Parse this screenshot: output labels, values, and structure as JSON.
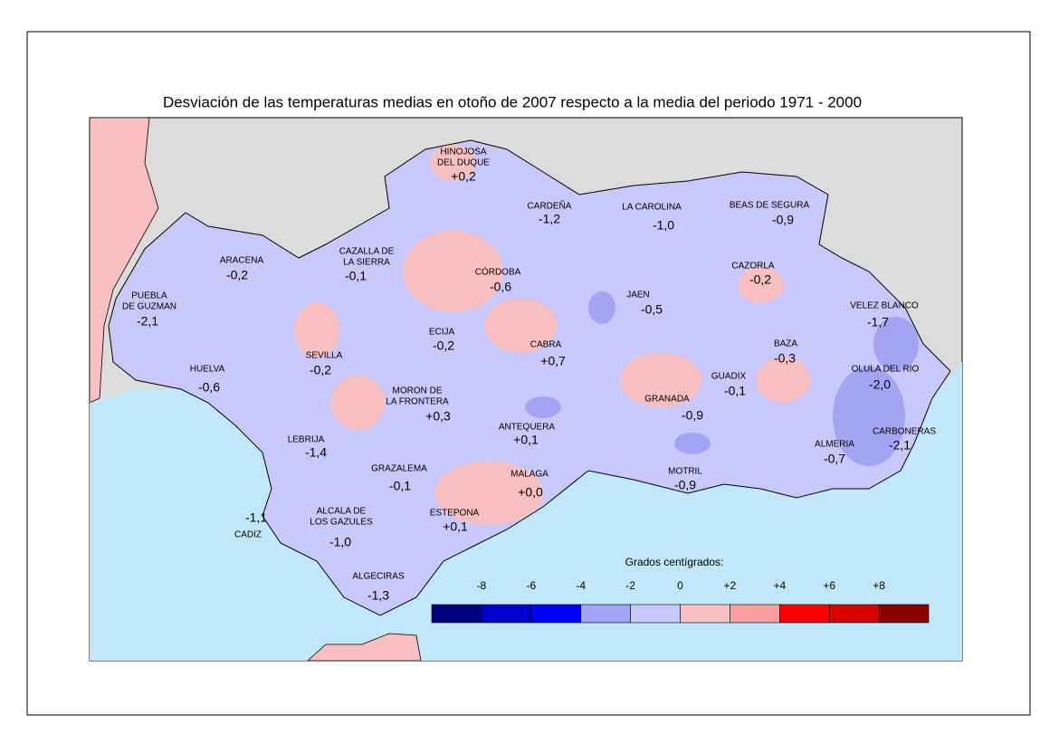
{
  "title": "Desviación de las temperaturas medias en otoño de 2007 respecto a la media del periodo 1971 - 2000",
  "stations": [
    {
      "name": [
        "HINOJOSA",
        "DEL DUQUE"
      ],
      "value": "+0,2"
    },
    {
      "name": [
        "CARDEÑA"
      ],
      "value": "-1,2"
    },
    {
      "name": [
        "LA CAROLINA"
      ],
      "value": "-1,0"
    },
    {
      "name": [
        "BEAS DE SEGURA"
      ],
      "value": "-0,9"
    },
    {
      "name": [
        "ARACENA"
      ],
      "value": "-0,2"
    },
    {
      "name": [
        "CAZALLA DE",
        "LA SIERRA"
      ],
      "value": "-0,1"
    },
    {
      "name": [
        "CÓRDOBA"
      ],
      "value": "-0,6"
    },
    {
      "name": [
        "CAZORLA"
      ],
      "value": "-0,2"
    },
    {
      "name": [
        "PUEBLA",
        "DE GUZMAN"
      ],
      "value": "-2,1"
    },
    {
      "name": [
        "JAEN"
      ],
      "value": "-0,5"
    },
    {
      "name": [
        "VELEZ BLANCO"
      ],
      "value": "-1,7"
    },
    {
      "name": [
        "ECIJA"
      ],
      "value": "-0,2"
    },
    {
      "name": [
        "CABRA"
      ],
      "value": "+0,7"
    },
    {
      "name": [
        "BAZA"
      ],
      "value": "-0,3"
    },
    {
      "name": [
        "SEVILLA"
      ],
      "value": "-0,2"
    },
    {
      "name": [
        "HUELVA"
      ],
      "value": "-0,6"
    },
    {
      "name": [
        "GUADIX"
      ],
      "value": "-0,1"
    },
    {
      "name": [
        "OLULA DEL RIO"
      ],
      "value": "-2,0"
    },
    {
      "name": [
        "MORON DE",
        "LA FRONTERA"
      ],
      "value": "+0,3"
    },
    {
      "name": [
        "GRANADA"
      ],
      "value": "-0,9"
    },
    {
      "name": [
        "CARBONERAS"
      ],
      "value": "-2,1"
    },
    {
      "name": [
        "ANTEQUERA"
      ],
      "value": "+0,1"
    },
    {
      "name": [
        "LEBRIJA"
      ],
      "value": "-1,4"
    },
    {
      "name": [
        "ALMERIA"
      ],
      "value": "-0,7"
    },
    {
      "name": [
        "GRAZALEMA"
      ],
      "value": "-0,1"
    },
    {
      "name": [
        "MALAGA"
      ],
      "value": "+0,0"
    },
    {
      "name": [
        "MOTRIL"
      ],
      "value": "-0,9"
    },
    {
      "name": [
        "ALCALA DE",
        "LOS GAZULES"
      ],
      "value": "-1,0"
    },
    {
      "name": [
        "ESTEPONA"
      ],
      "value": "+0,1"
    },
    {
      "name": [
        "CADIZ"
      ],
      "value": "-1,1"
    },
    {
      "name": [
        "ALGECIRAS"
      ],
      "value": "-1,3"
    }
  ],
  "legend": {
    "title": "Grados centígrados:",
    "colors": [
      "#000080",
      "#0000cc",
      "#0000ff",
      "#a4a4f4",
      "#c8c8fa",
      "#f8c0c0",
      "#f8a0a0",
      "#ff0000",
      "#d80000",
      "#880000"
    ],
    "labels": [
      "-8",
      "-6",
      "-4",
      "-2",
      "0",
      "+2",
      "+4",
      "+6",
      "+8"
    ]
  }
}
